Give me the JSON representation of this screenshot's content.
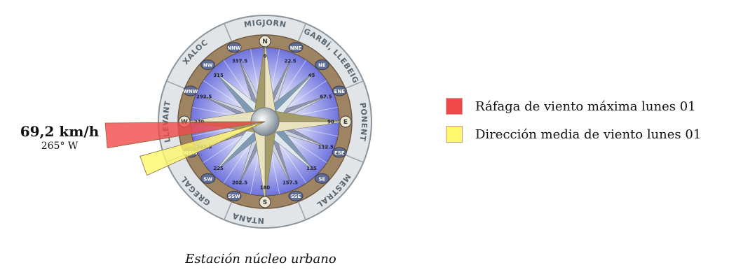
{
  "chart_data": {
    "type": "wind-rose",
    "ring_labels": [
      "TRAMUNTANA",
      "GREGAL",
      "LLEVANT",
      "XALOC",
      "MIGJORN",
      "GARBÍ, LLEBEIG",
      "PONENT",
      "MESTRAL"
    ],
    "compass_points": [
      "N",
      "NNE",
      "NE",
      "ENE",
      "E",
      "ESE",
      "SE",
      "SSE",
      "S",
      "SSW",
      "SW",
      "WSW",
      "W",
      "WNW",
      "NW",
      "NNW"
    ],
    "degree_labels": [
      "0",
      "22.5",
      "45",
      "67.5",
      "90",
      "112.5",
      "135",
      "157.5",
      "180",
      "202.5",
      "225",
      "247.5",
      "270",
      "292.5",
      "315",
      "337.5"
    ],
    "series": [
      {
        "name": "Ráfaga de viento máxima lunes 01",
        "direction_deg": 265,
        "color": "#f04848"
      },
      {
        "name": "Dirección media de viento lunes 01",
        "direction_deg": 250,
        "color": "#fff86a"
      }
    ]
  },
  "readout": {
    "speed": "69,2 km/h",
    "direction": "265° W"
  },
  "caption": "Estación núcleo urbano"
}
